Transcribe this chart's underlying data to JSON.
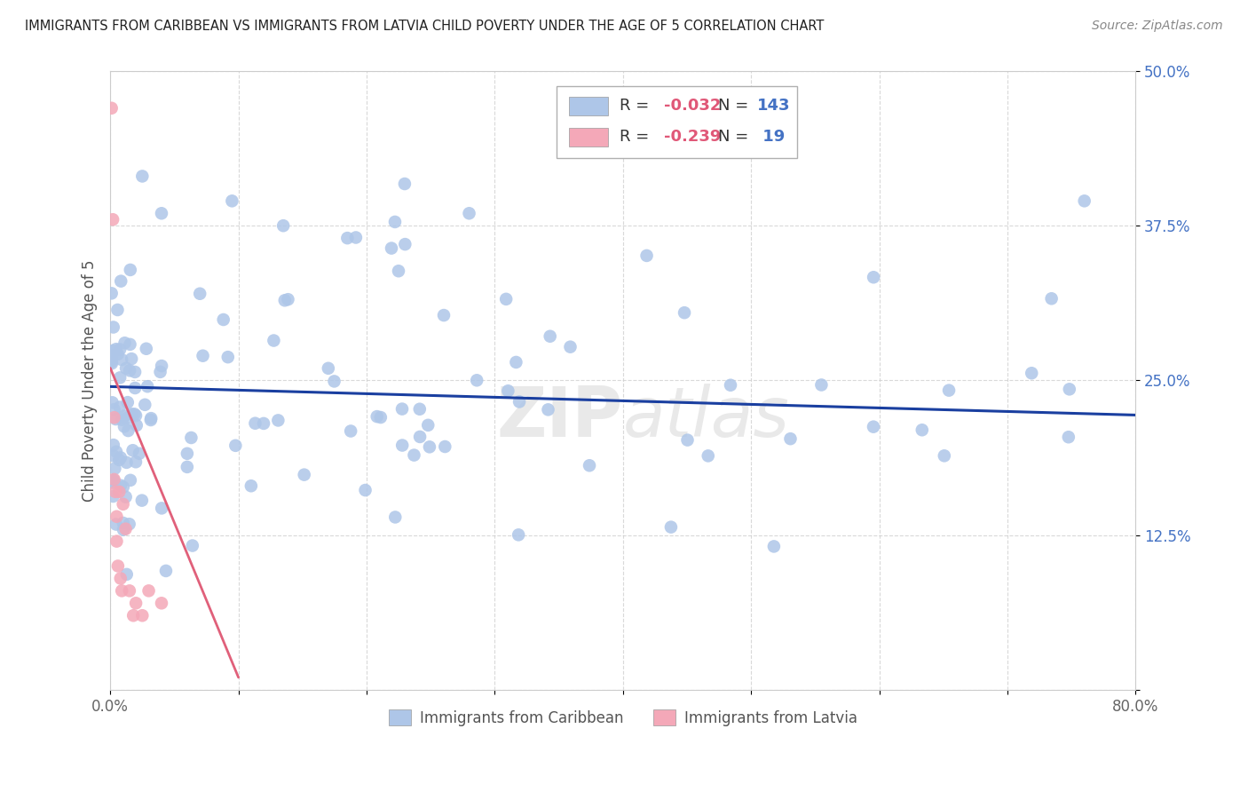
{
  "title": "IMMIGRANTS FROM CARIBBEAN VS IMMIGRANTS FROM LATVIA CHILD POVERTY UNDER THE AGE OF 5 CORRELATION CHART",
  "source": "Source: ZipAtlas.com",
  "ylabel": "Child Poverty Under the Age of 5",
  "xlim": [
    0,
    0.8
  ],
  "ylim": [
    0,
    0.5
  ],
  "xticks": [
    0.0,
    0.1,
    0.2,
    0.3,
    0.4,
    0.5,
    0.6,
    0.7,
    0.8
  ],
  "xticklabels": [
    "0.0%",
    "",
    "",
    "",
    "",
    "",
    "",
    "",
    "80.0%"
  ],
  "yticks": [
    0.0,
    0.125,
    0.25,
    0.375,
    0.5
  ],
  "yticklabels": [
    "",
    "12.5%",
    "25.0%",
    "37.5%",
    "50.0%"
  ],
  "legend_labels": [
    "Immigrants from Caribbean",
    "Immigrants from Latvia"
  ],
  "legend_r": [
    "-0.032",
    "-0.239"
  ],
  "legend_n": [
    "143",
    "19"
  ],
  "caribbean_color": "#aec6e8",
  "latvia_color": "#f4a8b8",
  "trendline_caribbean_color": "#1a3fa0",
  "trendline_latvia_color": "#e0607a",
  "background_color": "#ffffff",
  "grid_color": "#d0d0d0",
  "carib_trendline": [
    [
      0.0,
      0.245
    ],
    [
      0.8,
      0.222
    ]
  ],
  "latvia_trendline": [
    [
      0.0,
      0.26
    ],
    [
      0.1,
      0.01
    ]
  ]
}
